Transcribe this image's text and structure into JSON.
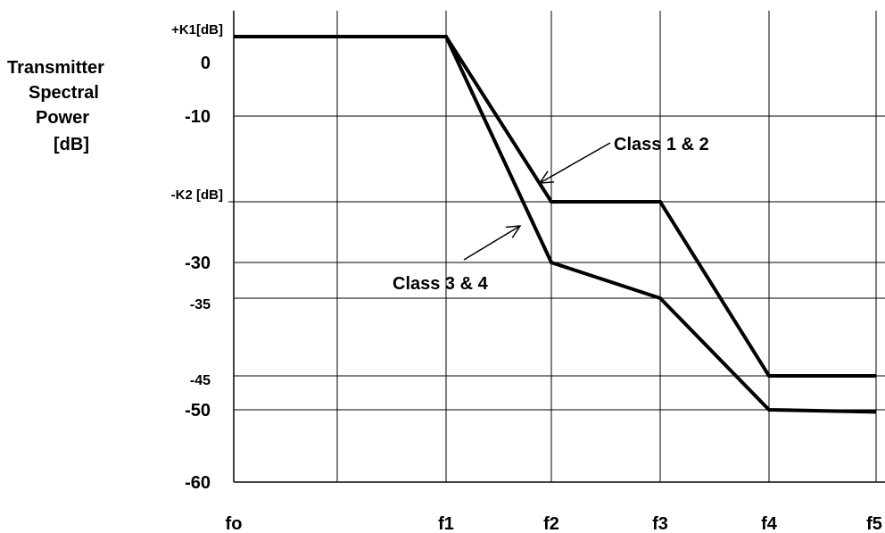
{
  "chart_data": {
    "type": "line",
    "title": "",
    "ylabel_lines": [
      "Transmitter",
      "Spectral",
      "Power",
      "[dB]"
    ],
    "xlabel": "",
    "x_categories": [
      "fo",
      "f1",
      "f2",
      "f3",
      "f4",
      "f5"
    ],
    "y_ticks": [
      {
        "label": "+K1[dB]",
        "value": 3
      },
      {
        "label": "0",
        "value": 0
      },
      {
        "label": "-10",
        "value": -10
      },
      {
        "label": "-K2 [dB]",
        "value": -20
      },
      {
        "label": "-30",
        "value": -30
      },
      {
        "label": "-35",
        "value": -35
      },
      {
        "label": "-45",
        "value": -45
      },
      {
        "label": "-50",
        "value": -50
      },
      {
        "label": "-60",
        "value": -60
      }
    ],
    "ylim": [
      -60,
      3
    ],
    "grid": true,
    "series": [
      {
        "name": "Class 1 & 2",
        "points": [
          {
            "x": "fo",
            "y": 3
          },
          {
            "x": "f1",
            "y": 3
          },
          {
            "x": "f2",
            "y": -20
          },
          {
            "x": "f3",
            "y": -20
          },
          {
            "x": "f4",
            "y": -45
          },
          {
            "x": "f5",
            "y": -45
          }
        ]
      },
      {
        "name": "Class 3 & 4",
        "points": [
          {
            "x": "fo",
            "y": 3
          },
          {
            "x": "f1",
            "y": 3
          },
          {
            "x": "f2",
            "y": -30
          },
          {
            "x": "f3",
            "y": -35
          },
          {
            "x": "f4",
            "y": -50
          },
          {
            "x": "f5",
            "y": -50.3
          }
        ]
      }
    ],
    "annotations": [
      {
        "text": "Class 1 & 2",
        "series": "Class 1 & 2"
      },
      {
        "text": "Class 3 & 4",
        "series": "Class 3 & 4"
      }
    ]
  }
}
